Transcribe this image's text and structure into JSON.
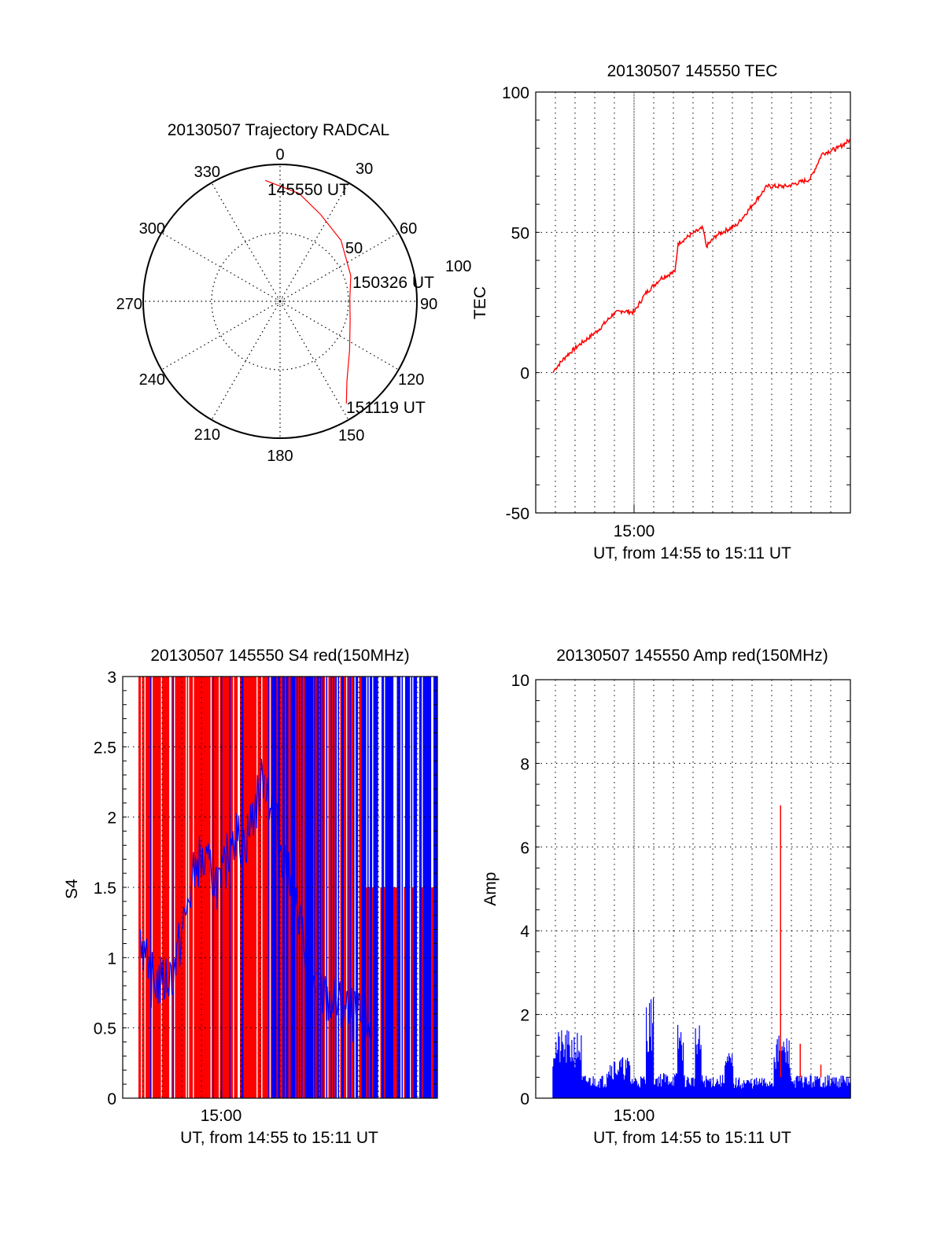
{
  "colors": {
    "red": "#ff0000",
    "blue": "#0000ff",
    "axis": "#000000",
    "background": "#ffffff"
  },
  "chart_data": [
    {
      "id": "trajectory",
      "type": "polar",
      "title": "20130507 Trajectory RADCAL",
      "angle_labels": [
        "0",
        "30",
        "60",
        "90",
        "120",
        "150",
        "180",
        "210",
        "240",
        "270",
        "300",
        "330"
      ],
      "radial_labels": [
        "50",
        "100"
      ],
      "rlim": [
        0,
        100
      ],
      "grid": true,
      "track": {
        "color": "#ff0000",
        "points": [
          {
            "az": 353,
            "r": 89
          },
          {
            "az": 10,
            "r": 80
          },
          {
            "az": 25,
            "r": 70
          },
          {
            "az": 45,
            "r": 63
          },
          {
            "az": 70,
            "r": 55
          },
          {
            "az": 88,
            "r": 51
          },
          {
            "az": 105,
            "r": 53
          },
          {
            "az": 125,
            "r": 62
          },
          {
            "az": 140,
            "r": 76
          },
          {
            "az": 147,
            "r": 89
          }
        ]
      },
      "annotations": [
        "145550 UT",
        "150326 UT",
        "151119 UT"
      ]
    },
    {
      "id": "tec",
      "type": "line",
      "title": "20130507 145550 TEC",
      "xlabel": "UT, from 14:55 to 15:11 UT",
      "ylabel": "TEC",
      "xlim_minutes": [
        0,
        16
      ],
      "x_tick_labels": [
        {
          "minute": 5,
          "label": "15:00"
        }
      ],
      "ylim": [
        -50,
        100
      ],
      "y_ticks": [
        -50,
        0,
        50,
        100
      ],
      "grid": true,
      "series": [
        {
          "name": "TEC",
          "color": "#ff0000",
          "x_minutes": [
            0.88,
            1.0,
            1.56,
            2.16,
            3.16,
            3.96,
            4.4,
            5.0,
            5.56,
            6.36,
            7.08,
            7.24,
            7.96,
            8.5,
            8.68,
            9.2,
            10.2,
            11.0,
            11.76,
            12.76,
            13.96,
            14.56,
            15.36,
            16.0
          ],
          "values": [
            0,
            1.5,
            6,
            9.6,
            15,
            21,
            22,
            21.5,
            28,
            33.6,
            36,
            46,
            49.5,
            51.5,
            45,
            49,
            52.5,
            59.5,
            66.4,
            66.4,
            69,
            78,
            80,
            83
          ]
        }
      ]
    },
    {
      "id": "s4",
      "type": "bar",
      "title": "20130507 145550 S4 red(150MHz)",
      "xlabel": "UT, from 14:55 to 15:11 UT",
      "ylabel": "S4",
      "xlim_minutes": [
        0,
        16
      ],
      "x_tick_labels": [
        {
          "minute": 5,
          "label": "15:00"
        }
      ],
      "ylim": [
        0,
        3
      ],
      "y_ticks": [
        0,
        0.5,
        1,
        1.5,
        2,
        2.5,
        3
      ],
      "y_tick_labels": [
        "0",
        "0.5",
        "1",
        "1.5",
        "2",
        "2.5",
        "3"
      ],
      "grid": true,
      "series": [
        {
          "name": "red",
          "color": "#ff0000",
          "description": "dense vertical spikes saturating at 3 across 14:55:50-15:11"
        },
        {
          "name": "blue",
          "color": "#0000ff",
          "baseline_profile": {
            "x_minutes": [
              0.9,
              1.3,
              2.0,
              2.6,
              3.2,
              3.8,
              4.5,
              5.0,
              5.6,
              6.2,
              7.2,
              9.8,
              12.1,
              12.6
            ],
            "values": [
              1.2,
              0.85,
              0.82,
              0.9,
              1.3,
              1.7,
              1.6,
              1.5,
              1.9,
              1.8,
              2.3,
              0.75,
              0.55,
              0.55
            ]
          }
        }
      ]
    },
    {
      "id": "amp",
      "type": "bar",
      "title": "20130507 145550 Amp red(150MHz)",
      "xlabel": "UT, from 14:55 to 15:11 UT",
      "ylabel": "Amp",
      "xlim_minutes": [
        0,
        16
      ],
      "x_tick_labels": [
        {
          "minute": 5,
          "label": "15:00"
        }
      ],
      "ylim": [
        0,
        10
      ],
      "y_ticks": [
        0,
        2,
        4,
        6,
        8,
        10
      ],
      "grid": true,
      "series": [
        {
          "name": "blue",
          "color": "#0000ff",
          "segments": [
            {
              "from": 0.85,
              "to": 2.3,
              "level": 1.3
            },
            {
              "from": 2.3,
              "to": 3.6,
              "level": 0.45
            },
            {
              "from": 3.6,
              "to": 4.8,
              "level": 0.8
            },
            {
              "from": 4.8,
              "to": 5.6,
              "level": 0.45
            },
            {
              "from": 5.6,
              "to": 6.0,
              "level": 1.95
            },
            {
              "from": 6.0,
              "to": 7.2,
              "level": 0.5
            },
            {
              "from": 7.2,
              "to": 7.5,
              "level": 1.5
            },
            {
              "from": 7.5,
              "to": 8.1,
              "level": 0.45
            },
            {
              "from": 8.1,
              "to": 8.4,
              "level": 1.4
            },
            {
              "from": 8.4,
              "to": 9.6,
              "level": 0.45
            },
            {
              "from": 9.6,
              "to": 10.0,
              "level": 0.9
            },
            {
              "from": 10.0,
              "to": 12.1,
              "level": 0.4
            },
            {
              "from": 12.1,
              "to": 12.9,
              "level": 1.2
            },
            {
              "from": 12.9,
              "to": 16.0,
              "level": 0.45
            }
          ]
        },
        {
          "name": "red",
          "color": "#ff0000",
          "spikes": [
            {
              "minute": 12.45,
              "value": 7.0
            },
            {
              "minute": 13.45,
              "value": 1.3
            },
            {
              "minute": 14.5,
              "value": 0.8
            }
          ]
        }
      ]
    }
  ]
}
